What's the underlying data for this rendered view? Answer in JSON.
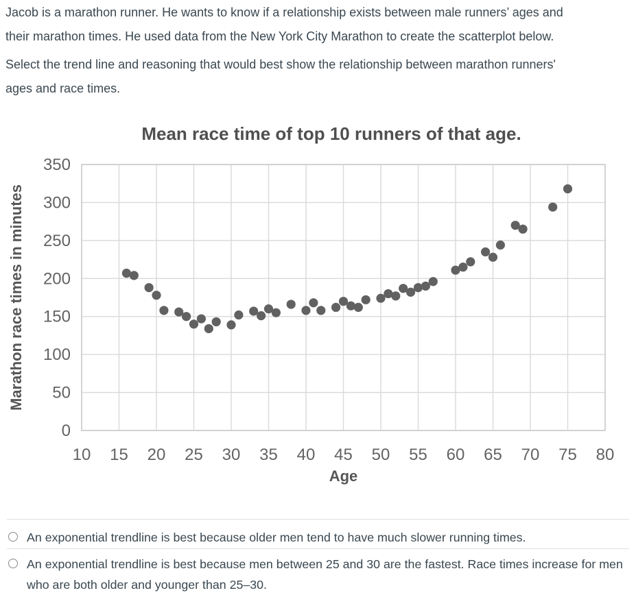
{
  "question": {
    "intro": "Jacob is a marathon runner. He wants to know if a relationship exists between male runners’ ages and\ntheir marathon times. He used data from the New York City Marathon to create the scatterplot below.",
    "prompt": "Select the trend line and reasoning that would best show the relationship between marathon runners'\nages and race times."
  },
  "chart_data": {
    "type": "scatter",
    "title": "Mean race time of top 10 runners of that age.",
    "xlabel": "Age",
    "ylabel": "Marathon race times in minutes",
    "xlim": [
      10,
      80
    ],
    "ylim": [
      0,
      350
    ],
    "xticks": [
      10,
      15,
      20,
      25,
      30,
      35,
      40,
      45,
      50,
      55,
      60,
      65,
      70,
      75,
      80
    ],
    "yticks": [
      0,
      50,
      100,
      150,
      200,
      250,
      300,
      350
    ],
    "grid": true,
    "legend": "none",
    "point_color": "#616161",
    "gridline_color": "#d9d9d9",
    "border_color": "#cccccc",
    "points": [
      [
        16,
        207
      ],
      [
        17,
        204
      ],
      [
        19,
        188
      ],
      [
        20,
        178
      ],
      [
        21,
        158
      ],
      [
        23,
        156
      ],
      [
        24,
        150
      ],
      [
        25,
        140
      ],
      [
        26,
        147
      ],
      [
        27,
        134
      ],
      [
        28,
        143
      ],
      [
        30,
        139
      ],
      [
        31,
        152
      ],
      [
        33,
        157
      ],
      [
        34,
        151
      ],
      [
        35,
        160
      ],
      [
        36,
        155
      ],
      [
        38,
        166
      ],
      [
        40,
        158
      ],
      [
        41,
        168
      ],
      [
        42,
        158
      ],
      [
        44,
        162
      ],
      [
        45,
        170
      ],
      [
        46,
        164
      ],
      [
        47,
        162
      ],
      [
        48,
        172
      ],
      [
        50,
        174
      ],
      [
        51,
        180
      ],
      [
        52,
        177
      ],
      [
        53,
        187
      ],
      [
        54,
        182
      ],
      [
        55,
        188
      ],
      [
        56,
        190
      ],
      [
        57,
        196
      ],
      [
        60,
        211
      ],
      [
        61,
        215
      ],
      [
        62,
        222
      ],
      [
        64,
        235
      ],
      [
        65,
        228
      ],
      [
        66,
        244
      ],
      [
        68,
        270
      ],
      [
        69,
        265
      ],
      [
        73,
        294
      ],
      [
        75,
        318
      ]
    ]
  },
  "options": [
    {
      "text": "An exponential trendline is best because older men tend to have much slower running times.",
      "selected": false
    },
    {
      "text": "An exponential trendline is best because men between 25 and 30 are the fastest. Race times increase for men\nwho are both older and younger than 25–30.",
      "selected": false
    }
  ]
}
